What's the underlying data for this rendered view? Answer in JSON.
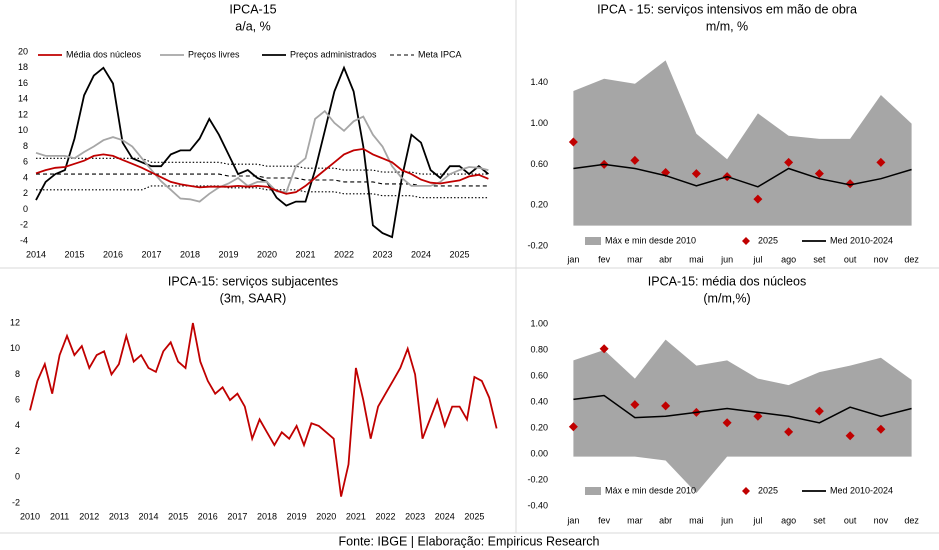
{
  "chart_data": [
    {
      "type": "line",
      "title": "IPCA-15",
      "subtitle": "a/a, %",
      "x": [
        2014,
        2014.25,
        2014.5,
        2014.75,
        2015,
        2015.25,
        2015.5,
        2015.75,
        2016,
        2016.25,
        2016.5,
        2016.75,
        2017,
        2017.25,
        2017.5,
        2017.75,
        2018,
        2018.25,
        2018.5,
        2018.75,
        2019,
        2019.25,
        2019.5,
        2019.75,
        2020,
        2020.25,
        2020.5,
        2020.75,
        2021,
        2021.25,
        2021.5,
        2021.75,
        2022,
        2022.25,
        2022.5,
        2022.75,
        2023,
        2023.25,
        2023.5,
        2023.75,
        2024,
        2024.25,
        2024.5,
        2024.75,
        2025,
        2025.25,
        2025.5,
        2025.75
      ],
      "xlim": [
        2014,
        2026
      ],
      "xticks": [
        2014,
        2015,
        2016,
        2017,
        2018,
        2019,
        2020,
        2021,
        2022,
        2023,
        2024,
        2025
      ],
      "ylim": [
        -4,
        20
      ],
      "yticks": [
        -4,
        -2,
        0,
        2,
        4,
        6,
        8,
        10,
        12,
        14,
        16,
        18,
        20
      ],
      "series": [
        {
          "name": "Média dos núcleos",
          "color": "#c00000",
          "style": "solid",
          "values": [
            4.6,
            5.0,
            5.3,
            5.4,
            5.8,
            6.2,
            6.8,
            7.0,
            6.8,
            6.3,
            5.8,
            5.3,
            4.7,
            4.1,
            3.5,
            3.2,
            3.0,
            2.8,
            2.9,
            2.9,
            2.9,
            3.0,
            2.9,
            3.0,
            2.9,
            2.4,
            2.0,
            2.2,
            3.0,
            4.0,
            5.0,
            6.0,
            7.0,
            7.5,
            7.7,
            7.0,
            6.5,
            6.0,
            5.0,
            4.5,
            3.8,
            3.4,
            3.3,
            3.5,
            3.7,
            4.2,
            4.4,
            3.9
          ]
        },
        {
          "name": "Preços livres",
          "color": "#a6a6a6",
          "style": "solid",
          "values": [
            7.2,
            6.8,
            6.8,
            6.8,
            6.5,
            7.3,
            8.0,
            8.8,
            9.2,
            8.8,
            8.0,
            6.5,
            5.0,
            3.6,
            2.5,
            1.4,
            1.3,
            1.0,
            2.0,
            2.8,
            3.3,
            4.0,
            3.0,
            3.5,
            3.5,
            2.3,
            2.2,
            5.5,
            6.5,
            11.5,
            12.5,
            11.0,
            10.0,
            11.2,
            11.8,
            9.5,
            8.0,
            5.5,
            4.0,
            3.0,
            3.0,
            3.0,
            3.5,
            4.5,
            5.0,
            5.4,
            5.3,
            5.0
          ]
        },
        {
          "name": "Preços administrados",
          "color": "#000000",
          "style": "solid",
          "values": [
            1.2,
            3.5,
            4.5,
            5.0,
            9.0,
            14.5,
            17.0,
            18.0,
            16.0,
            8.5,
            6.5,
            6.0,
            5.5,
            5.5,
            7.0,
            7.5,
            7.5,
            9.0,
            11.5,
            9.5,
            7.0,
            4.5,
            5.0,
            4.0,
            3.5,
            1.5,
            0.5,
            1.0,
            1.0,
            5.0,
            10.0,
            15.0,
            18.0,
            15.0,
            8.0,
            -2.0,
            -3.0,
            -3.5,
            4.0,
            9.5,
            8.5,
            5.0,
            4.0,
            5.5,
            5.5,
            4.5,
            5.5,
            4.5
          ]
        },
        {
          "name": "Meta IPCA",
          "color": "#000000",
          "style": "dashed",
          "values": [
            4.5,
            4.5,
            4.5,
            4.5,
            4.5,
            4.5,
            4.5,
            4.5,
            4.5,
            4.5,
            4.5,
            4.5,
            4.5,
            4.5,
            4.5,
            4.5,
            4.5,
            4.5,
            4.5,
            4.5,
            4.25,
            4.25,
            4.25,
            4.25,
            4.0,
            4.0,
            4.0,
            4.0,
            3.75,
            3.75,
            3.75,
            3.75,
            3.5,
            3.5,
            3.5,
            3.5,
            3.25,
            3.25,
            3.25,
            3.25,
            3.0,
            3.0,
            3.0,
            3.0,
            3.0,
            3.0,
            3.0,
            3.0
          ]
        },
        {
          "color": "#000000",
          "style": "dotted",
          "values": [
            6.5,
            6.5,
            6.5,
            6.5,
            6.5,
            6.5,
            6.5,
            6.5,
            6.5,
            6.5,
            6.5,
            6.5,
            6.0,
            6.0,
            6.0,
            6.0,
            6.0,
            6.0,
            6.0,
            6.0,
            5.75,
            5.75,
            5.75,
            5.75,
            5.5,
            5.5,
            5.5,
            5.5,
            5.25,
            5.25,
            5.25,
            5.25,
            5.0,
            5.0,
            5.0,
            5.0,
            4.75,
            4.75,
            4.75,
            4.75,
            4.5,
            4.5,
            4.5,
            4.5,
            4.5,
            4.5,
            4.5,
            4.5
          ]
        },
        {
          "color": "#000000",
          "style": "dotted",
          "values": [
            2.5,
            2.5,
            2.5,
            2.5,
            2.5,
            2.5,
            2.5,
            2.5,
            2.5,
            2.5,
            2.5,
            2.5,
            3.0,
            3.0,
            3.0,
            3.0,
            3.0,
            3.0,
            3.0,
            3.0,
            2.75,
            2.75,
            2.75,
            2.75,
            2.5,
            2.5,
            2.5,
            2.5,
            2.25,
            2.25,
            2.25,
            2.25,
            2.0,
            2.0,
            2.0,
            2.0,
            1.75,
            1.75,
            1.75,
            1.75,
            1.5,
            1.5,
            1.5,
            1.5,
            1.5,
            1.5,
            1.5,
            1.5
          ]
        }
      ]
    },
    {
      "type": "range",
      "title": "IPCA - 15: serviços intensivos em mão de obra",
      "subtitle": "m/m, %",
      "categories": [
        "jan",
        "fev",
        "mar",
        "abr",
        "mai",
        "jun",
        "jul",
        "ago",
        "set",
        "out",
        "nov",
        "dez"
      ],
      "ylim": [
        -0.2,
        1.8
      ],
      "yticks": [
        {
          "value": -0.2,
          "label": "-0.20"
        },
        {
          "value": 0.2,
          "label": "0.20"
        },
        {
          "value": 0.6,
          "label": "0.60"
        },
        {
          "value": 1.0,
          "label": "1.00"
        },
        {
          "value": 1.4,
          "label": "1.40"
        }
      ],
      "series": [
        {
          "name": "Máx e min desde 2010",
          "type": "area_range",
          "color": "#a6a6a6",
          "high": [
            1.32,
            1.44,
            1.39,
            1.62,
            0.9,
            0.65,
            1.1,
            0.88,
            0.85,
            0.85,
            1.28,
            1.0
          ],
          "low": [
            0,
            0,
            0,
            0,
            0,
            0,
            0,
            0,
            0,
            0,
            0,
            0
          ]
        },
        {
          "name": "2025",
          "type": "scatter",
          "color": "#c00000",
          "values": [
            0.82,
            0.6,
            0.64,
            0.52,
            0.51,
            0.48,
            0.26,
            0.62,
            0.51,
            0.41,
            0.62,
            null
          ]
        },
        {
          "name": "Med 2010-2024",
          "type": "line",
          "color": "#000000",
          "values": [
            0.56,
            0.6,
            0.56,
            0.49,
            0.39,
            0.48,
            0.38,
            0.56,
            0.46,
            0.4,
            0.46,
            0.55
          ]
        }
      ]
    },
    {
      "type": "line",
      "title": "IPCA-15: serviços subjacentes",
      "subtitle": "(3m, SAAR)",
      "x": [
        2010,
        2010.25,
        2010.5,
        2010.75,
        2011,
        2011.25,
        2011.5,
        2011.75,
        2012,
        2012.25,
        2012.5,
        2012.75,
        2013,
        2013.25,
        2013.5,
        2013.75,
        2014,
        2014.25,
        2014.5,
        2014.75,
        2015,
        2015.25,
        2015.5,
        2015.75,
        2016,
        2016.25,
        2016.5,
        2016.75,
        2017,
        2017.25,
        2017.5,
        2017.75,
        2018,
        2018.25,
        2018.5,
        2018.75,
        2019,
        2019.25,
        2019.5,
        2019.75,
        2020,
        2020.25,
        2020.5,
        2020.75,
        2021,
        2021.25,
        2021.5,
        2021.75,
        2022,
        2022.25,
        2022.5,
        2022.75,
        2023,
        2023.25,
        2023.5,
        2023.75,
        2024,
        2024.25,
        2024.5,
        2024.75,
        2025,
        2025.25,
        2025.5,
        2025.75
      ],
      "xlim": [
        2010,
        2026
      ],
      "xticks": [
        2010,
        2011,
        2012,
        2013,
        2014,
        2015,
        2016,
        2017,
        2018,
        2019,
        2020,
        2021,
        2022,
        2023,
        2024,
        2025
      ],
      "ylim": [
        -2,
        12
      ],
      "yticks": [
        -2,
        0,
        2,
        4,
        6,
        8,
        10,
        12
      ],
      "series": [
        {
          "color": "#c00000",
          "style": "solid",
          "values": [
            5.2,
            7.5,
            8.8,
            6.5,
            9.5,
            11.0,
            9.5,
            10.2,
            8.5,
            9.5,
            9.8,
            8.0,
            8.8,
            11.0,
            9.0,
            9.5,
            8.5,
            8.2,
            9.8,
            10.5,
            9.0,
            8.5,
            12.0,
            9.0,
            7.5,
            6.5,
            7.0,
            6.0,
            6.5,
            5.5,
            3.0,
            4.5,
            3.5,
            2.5,
            3.5,
            3.0,
            4.0,
            2.5,
            4.2,
            4.0,
            3.5,
            3.0,
            -1.5,
            1.0,
            8.5,
            6.0,
            3.0,
            5.5,
            6.5,
            7.5,
            8.5,
            10.0,
            8.0,
            3.0,
            4.5,
            6.0,
            4.0,
            5.5,
            5.5,
            4.5,
            7.8,
            7.5,
            6.2,
            3.8
          ]
        }
      ]
    },
    {
      "type": "range",
      "title": "IPCA-15: média dos núcleos",
      "subtitle": "(m/m,%)",
      "categories": [
        "jan",
        "fev",
        "mar",
        "abr",
        "mai",
        "jun",
        "jul",
        "ago",
        "set",
        "out",
        "nov",
        "dez"
      ],
      "ylim": [
        -0.4,
        1.0
      ],
      "yticks": [
        {
          "value": -0.4,
          "label": "-0.40"
        },
        {
          "value": -0.2,
          "label": "-0.20"
        },
        {
          "value": 0,
          "label": "0.00"
        },
        {
          "value": 0.2,
          "label": "0.20"
        },
        {
          "value": 0.4,
          "label": "0.40"
        },
        {
          "value": 0.6,
          "label": "0.60"
        },
        {
          "value": 0.8,
          "label": "0.80"
        },
        {
          "value": 1.0,
          "label": "1.00"
        }
      ],
      "series": [
        {
          "name": "Máx e min desde 2010",
          "type": "area_range",
          "color": "#a6a6a6",
          "high": [
            0.72,
            0.8,
            0.58,
            0.88,
            0.68,
            0.72,
            0.58,
            0.53,
            0.63,
            0.68,
            0.74,
            0.57
          ],
          "low": [
            -0.02,
            -0.02,
            -0.02,
            -0.05,
            -0.3,
            -0.02,
            -0.02,
            -0.02,
            -0.02,
            -0.02,
            -0.02,
            -0.02
          ]
        },
        {
          "name": "2025",
          "type": "scatter",
          "color": "#c00000",
          "values": [
            0.21,
            0.81,
            0.38,
            0.37,
            0.32,
            0.24,
            0.29,
            0.17,
            0.33,
            0.14,
            0.19,
            null
          ]
        },
        {
          "name": "Med 2010-2024",
          "type": "line",
          "color": "#000000",
          "values": [
            0.42,
            0.45,
            0.28,
            0.29,
            0.32,
            0.35,
            0.32,
            0.29,
            0.24,
            0.36,
            0.29,
            0.35
          ]
        }
      ]
    }
  ],
  "footer": "Fonte: IBGE | Elaboração: Empiricus Research"
}
